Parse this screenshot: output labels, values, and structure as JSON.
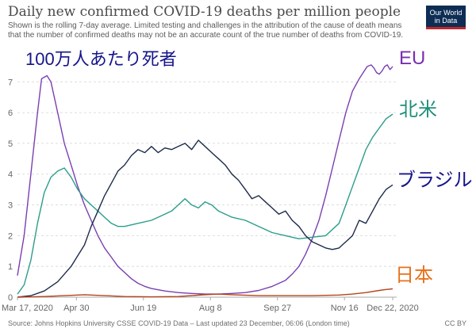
{
  "header": {
    "title": "Daily new confirmed COVID-19 deaths per million people",
    "subtitle": "Shown is the rolling 7-day average. Limited testing and challenges in the attribution of the cause of death means that the number of confirmed deaths may not be an accurate count of the true number of deaths from COVID-19.",
    "logo_line1": "Our World",
    "logo_line2": "in Data"
  },
  "annotations": {
    "jp_title": "100万人あたり死者",
    "eu": "EU",
    "north_america": "北米",
    "brazil": "ブラジル",
    "japan": "日本"
  },
  "footer": {
    "source": "Source: Johns Hopkins University CSSE COVID-19 Data – Last updated 23 December, 06:06 (London time)",
    "license": "CC BY"
  },
  "colors": {
    "eu": "#7a3fb0",
    "north_america": "#2a9d8a",
    "brazil": "#1c2b4a",
    "japan": "#b5441a",
    "grid": "#dddddd",
    "annotation_title": "#15158a",
    "label_eu": "#7a2fb3",
    "label_na": "#1f8f7a",
    "label_brazil": "#15158a",
    "label_japan": "#e8701a"
  },
  "chart_data": {
    "type": "line",
    "title": "Daily new confirmed COVID-19 deaths per million people",
    "xlabel": "",
    "ylabel": "",
    "xlim": [
      0,
      280
    ],
    "ylim": [
      0,
      7.6
    ],
    "yticks": [
      0,
      1,
      2,
      3,
      4,
      5,
      6,
      7
    ],
    "xticks": [
      {
        "day": 0,
        "label": "Mar 17, 2020"
      },
      {
        "day": 44,
        "label": "Apr 30"
      },
      {
        "day": 94,
        "label": "Jun 19"
      },
      {
        "day": 144,
        "label": "Aug 8"
      },
      {
        "day": 194,
        "label": "Sep 27"
      },
      {
        "day": 244,
        "label": "Nov 16"
      },
      {
        "day": 280,
        "label": "Dec 22, 2020"
      }
    ],
    "grid": true,
    "series": [
      {
        "name": "EU",
        "color_key": "eu",
        "x": [
          0,
          5,
          10,
          15,
          18,
          22,
          25,
          30,
          35,
          40,
          45,
          50,
          55,
          60,
          65,
          70,
          75,
          80,
          85,
          90,
          95,
          100,
          110,
          120,
          130,
          140,
          150,
          160,
          170,
          180,
          190,
          200,
          205,
          210,
          215,
          220,
          225,
          230,
          235,
          240,
          245,
          250,
          255,
          258,
          261,
          264,
          266,
          268,
          270,
          272,
          274,
          276,
          278,
          280
        ],
        "y": [
          0.7,
          2.0,
          4.0,
          6.0,
          7.1,
          7.2,
          7.0,
          6.0,
          5.0,
          4.3,
          3.6,
          3.0,
          2.5,
          2.0,
          1.6,
          1.3,
          1.0,
          0.8,
          0.6,
          0.45,
          0.35,
          0.28,
          0.2,
          0.15,
          0.12,
          0.1,
          0.1,
          0.12,
          0.15,
          0.22,
          0.35,
          0.55,
          0.75,
          1.0,
          1.4,
          1.9,
          2.5,
          3.3,
          4.2,
          5.1,
          6.0,
          6.7,
          7.1,
          7.3,
          7.5,
          7.55,
          7.45,
          7.3,
          7.25,
          7.35,
          7.5,
          7.55,
          7.4,
          7.5
        ]
      },
      {
        "name": "North America",
        "color_key": "north_america",
        "x": [
          0,
          5,
          10,
          15,
          20,
          25,
          30,
          35,
          40,
          45,
          50,
          55,
          60,
          65,
          70,
          75,
          80,
          90,
          100,
          105,
          110,
          115,
          120,
          125,
          130,
          135,
          140,
          145,
          150,
          160,
          170,
          180,
          190,
          200,
          210,
          220,
          230,
          240,
          245,
          250,
          255,
          260,
          265,
          270,
          275,
          280
        ],
        "y": [
          0.1,
          0.4,
          1.2,
          2.4,
          3.4,
          3.9,
          4.1,
          4.2,
          3.9,
          3.5,
          3.2,
          3.0,
          2.8,
          2.6,
          2.4,
          2.3,
          2.3,
          2.4,
          2.5,
          2.6,
          2.7,
          2.8,
          3.0,
          3.2,
          3.0,
          2.9,
          3.1,
          3.0,
          2.8,
          2.6,
          2.5,
          2.3,
          2.1,
          2.0,
          1.9,
          1.95,
          2.0,
          2.4,
          3.0,
          3.6,
          4.2,
          4.8,
          5.2,
          5.5,
          5.8,
          5.95
        ]
      },
      {
        "name": "Brazil",
        "color_key": "brazil",
        "x": [
          0,
          10,
          20,
          30,
          40,
          50,
          55,
          60,
          65,
          70,
          75,
          80,
          85,
          90,
          95,
          100,
          105,
          110,
          115,
          120,
          125,
          130,
          135,
          140,
          145,
          150,
          155,
          160,
          165,
          170,
          175,
          180,
          185,
          190,
          195,
          200,
          205,
          210,
          215,
          220,
          225,
          230,
          235,
          240,
          245,
          250,
          255,
          260,
          265,
          270,
          275,
          280
        ],
        "y": [
          0.0,
          0.05,
          0.2,
          0.5,
          1.0,
          1.7,
          2.3,
          2.8,
          3.3,
          3.7,
          4.1,
          4.3,
          4.6,
          4.8,
          4.7,
          4.9,
          4.7,
          4.85,
          4.8,
          4.9,
          5.0,
          4.8,
          5.1,
          4.9,
          4.7,
          4.5,
          4.3,
          4.0,
          3.8,
          3.5,
          3.2,
          3.3,
          3.1,
          2.9,
          2.7,
          2.8,
          2.5,
          2.3,
          2.0,
          1.8,
          1.7,
          1.6,
          1.55,
          1.6,
          1.8,
          2.0,
          2.5,
          2.4,
          2.8,
          3.2,
          3.5,
          3.65
        ]
      },
      {
        "name": "Japan",
        "color_key": "japan",
        "x": [
          0,
          20,
          40,
          50,
          60,
          80,
          100,
          120,
          140,
          150,
          160,
          180,
          200,
          220,
          240,
          250,
          260,
          270,
          275,
          280
        ],
        "y": [
          0.0,
          0.02,
          0.06,
          0.08,
          0.06,
          0.02,
          0.01,
          0.02,
          0.08,
          0.1,
          0.08,
          0.05,
          0.05,
          0.05,
          0.07,
          0.1,
          0.15,
          0.22,
          0.25,
          0.27
        ]
      }
    ]
  }
}
